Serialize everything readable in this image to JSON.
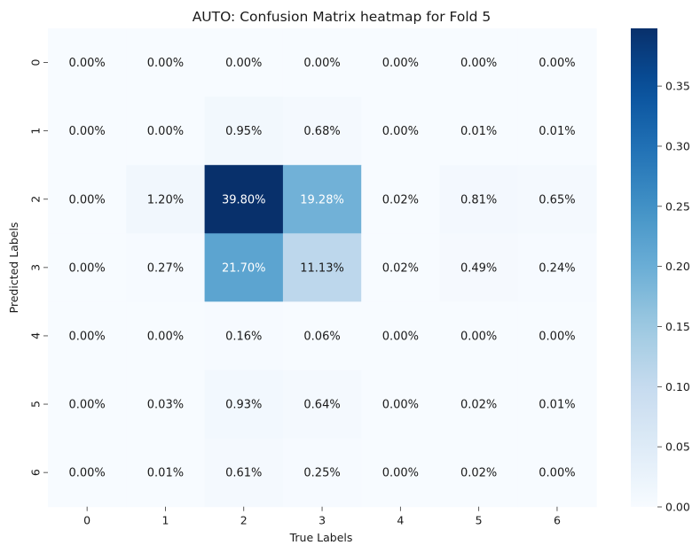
{
  "chart_data": {
    "type": "heatmap",
    "title": "AUTO: Confusion Matrix heatmap for Fold 5",
    "xlabel": "True Labels",
    "ylabel": "Predicted Labels",
    "x_categories": [
      "0",
      "1",
      "2",
      "3",
      "4",
      "5",
      "6"
    ],
    "y_categories": [
      "0",
      "1",
      "2",
      "3",
      "4",
      "5",
      "6"
    ],
    "values": [
      [
        0.0,
        0.0,
        0.0,
        0.0,
        0.0,
        0.0,
        0.0
      ],
      [
        0.0,
        0.0,
        0.0095,
        0.0068,
        0.0,
        0.0001,
        0.0001
      ],
      [
        0.0,
        0.012,
        0.398,
        0.1928,
        0.0002,
        0.0081,
        0.0065
      ],
      [
        0.0,
        0.0027,
        0.217,
        0.1113,
        0.0002,
        0.0049,
        0.0024
      ],
      [
        0.0,
        0.0,
        0.0016,
        0.0006,
        0.0,
        0.0,
        0.0
      ],
      [
        0.0,
        0.0003,
        0.0093,
        0.0064,
        0.0,
        0.0002,
        0.0001
      ],
      [
        0.0,
        0.0001,
        0.0061,
        0.0025,
        0.0,
        0.0002,
        0.0
      ]
    ],
    "annotations": [
      [
        "0.00%",
        "0.00%",
        "0.00%",
        "0.00%",
        "0.00%",
        "0.00%",
        "0.00%"
      ],
      [
        "0.00%",
        "0.00%",
        "0.95%",
        "0.68%",
        "0.00%",
        "0.01%",
        "0.01%"
      ],
      [
        "0.00%",
        "1.20%",
        "39.80%",
        "19.28%",
        "0.02%",
        "0.81%",
        "0.65%"
      ],
      [
        "0.00%",
        "0.27%",
        "21.70%",
        "11.13%",
        "0.02%",
        "0.49%",
        "0.24%"
      ],
      [
        "0.00%",
        "0.00%",
        "0.16%",
        "0.06%",
        "0.00%",
        "0.00%",
        "0.00%"
      ],
      [
        "0.00%",
        "0.03%",
        "0.93%",
        "0.64%",
        "0.00%",
        "0.02%",
        "0.01%"
      ],
      [
        "0.00%",
        "0.01%",
        "0.61%",
        "0.25%",
        "0.00%",
        "0.02%",
        "0.00%"
      ]
    ],
    "colormap": "Blues",
    "color_range": [
      0,
      0.398
    ],
    "colorbar_ticks": [
      0.0,
      0.05,
      0.1,
      0.15,
      0.2,
      0.25,
      0.3,
      0.35
    ],
    "colorbar_tick_labels": [
      "0.00",
      "0.05",
      "0.10",
      "0.15",
      "0.20",
      "0.25",
      "0.30",
      "0.35"
    ]
  }
}
